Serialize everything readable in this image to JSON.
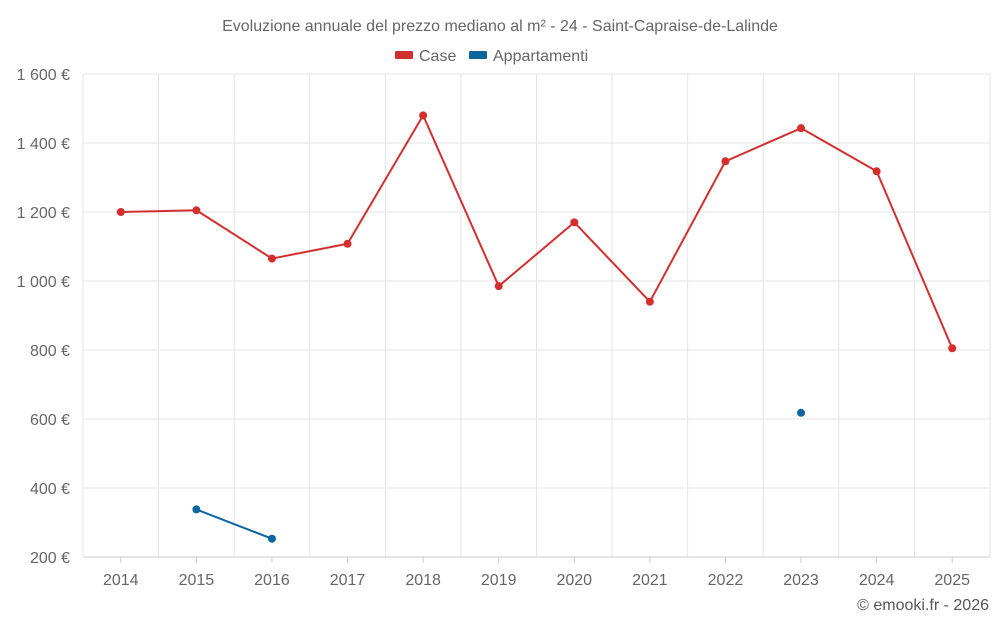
{
  "chart_data": {
    "type": "line",
    "title": "Evoluzione annuale del prezzo mediano al m² - 24 - Saint-Capraise-de-Lalinde",
    "categories": [
      "2014",
      "2015",
      "2016",
      "2017",
      "2018",
      "2019",
      "2020",
      "2021",
      "2022",
      "2023",
      "2024",
      "2025"
    ],
    "ylim": [
      200,
      1600
    ],
    "yticks": [
      200,
      400,
      600,
      800,
      1000,
      1200,
      1400,
      1600
    ],
    "ytick_labels": [
      "200 €",
      "400 €",
      "600 €",
      "800 €",
      "1 000 €",
      "1 200 €",
      "1 400 €",
      "1 600 €"
    ],
    "grid": true,
    "legend_position": "top-center",
    "series": [
      {
        "name": "Case",
        "color": "#d32f2f",
        "values": [
          1200,
          1205,
          1065,
          1108,
          1480,
          985,
          1170,
          940,
          1347,
          1443,
          1318,
          805
        ]
      },
      {
        "name": "Appartamenti",
        "color": "#0b66a0",
        "values": [
          null,
          338,
          253,
          null,
          null,
          null,
          null,
          null,
          null,
          618,
          null,
          null
        ]
      }
    ],
    "credit": "© emooki.fr - 2026"
  }
}
